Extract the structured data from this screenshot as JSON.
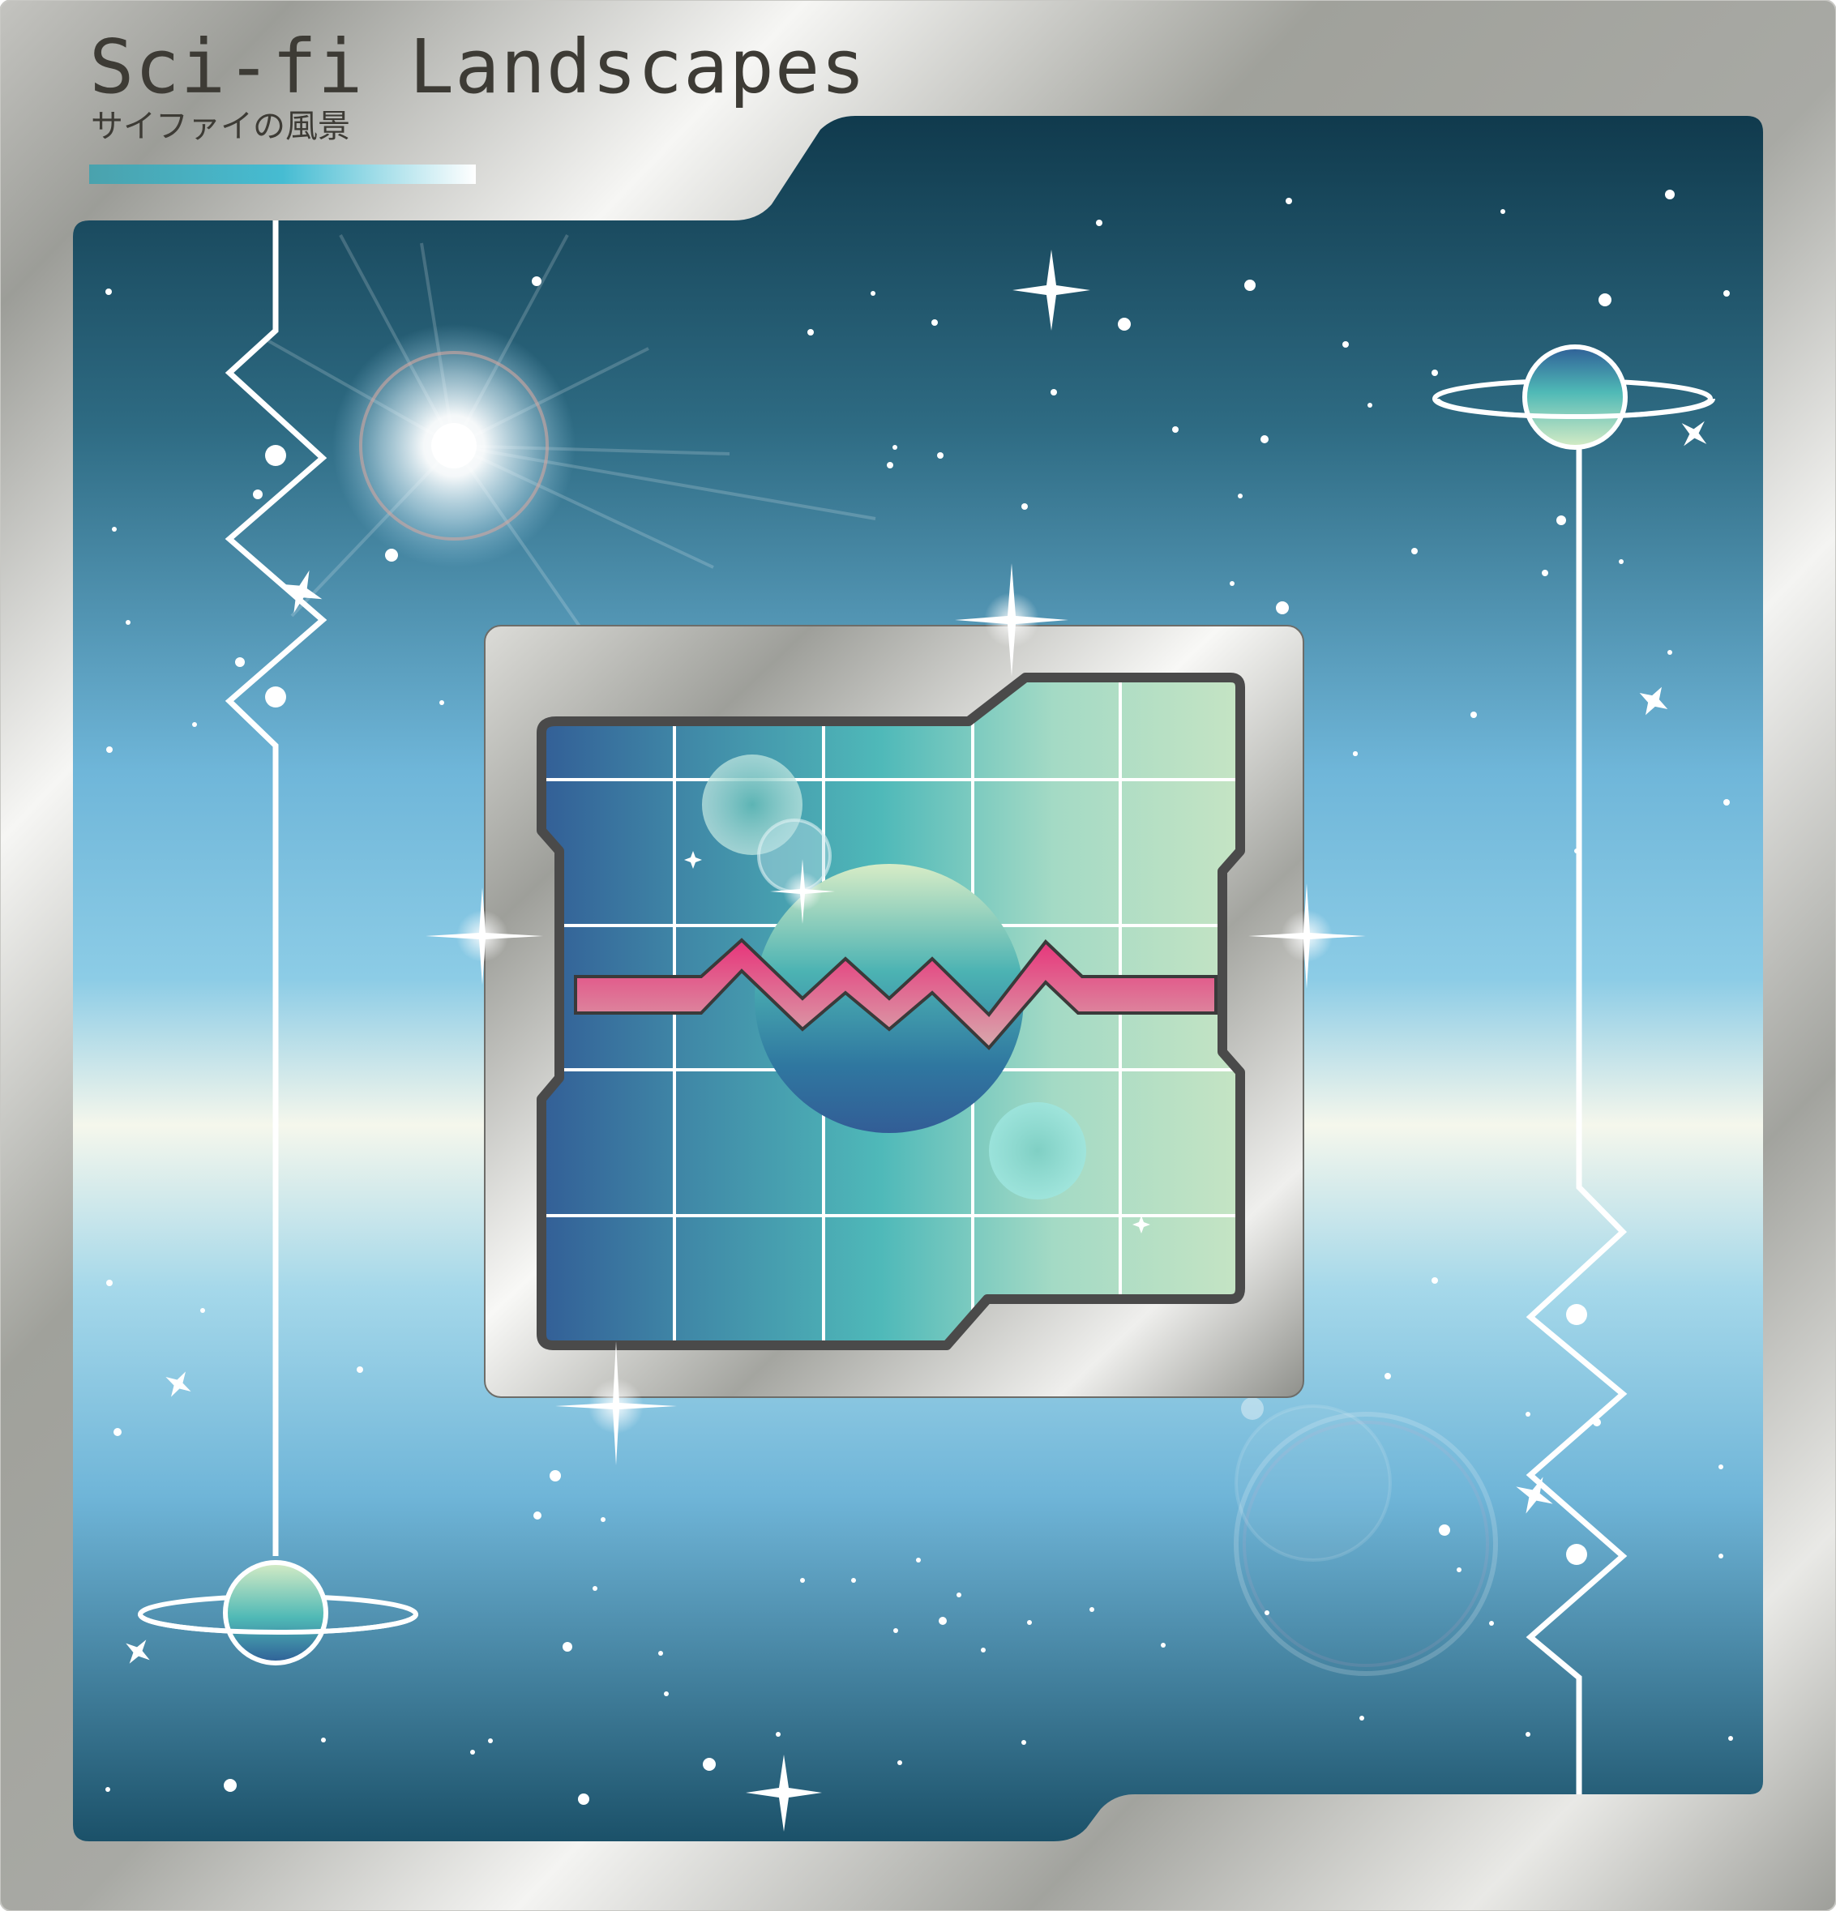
{
  "card": {
    "title": "Sci-fi Landscapes",
    "subtitle": "サイファイの風景"
  },
  "colors": {
    "frame_silver": "#a0a19b",
    "frame_light": "#f6f6f4",
    "space_dark": "#103a4d",
    "space_mid": "#7dc4e6",
    "horizon_glow": "#f5f7ec",
    "screen_blue": "#325d96",
    "screen_teal": "#4fb9b9",
    "screen_mint": "#c5e3c5",
    "mountain_pink": "#e7347a",
    "mountain_rose": "#d8a9ad",
    "screen_border": "#4a4a4a",
    "accent_bar_teal": "#4aa2ad",
    "accent_bar_cyan": "#46bcd2"
  }
}
